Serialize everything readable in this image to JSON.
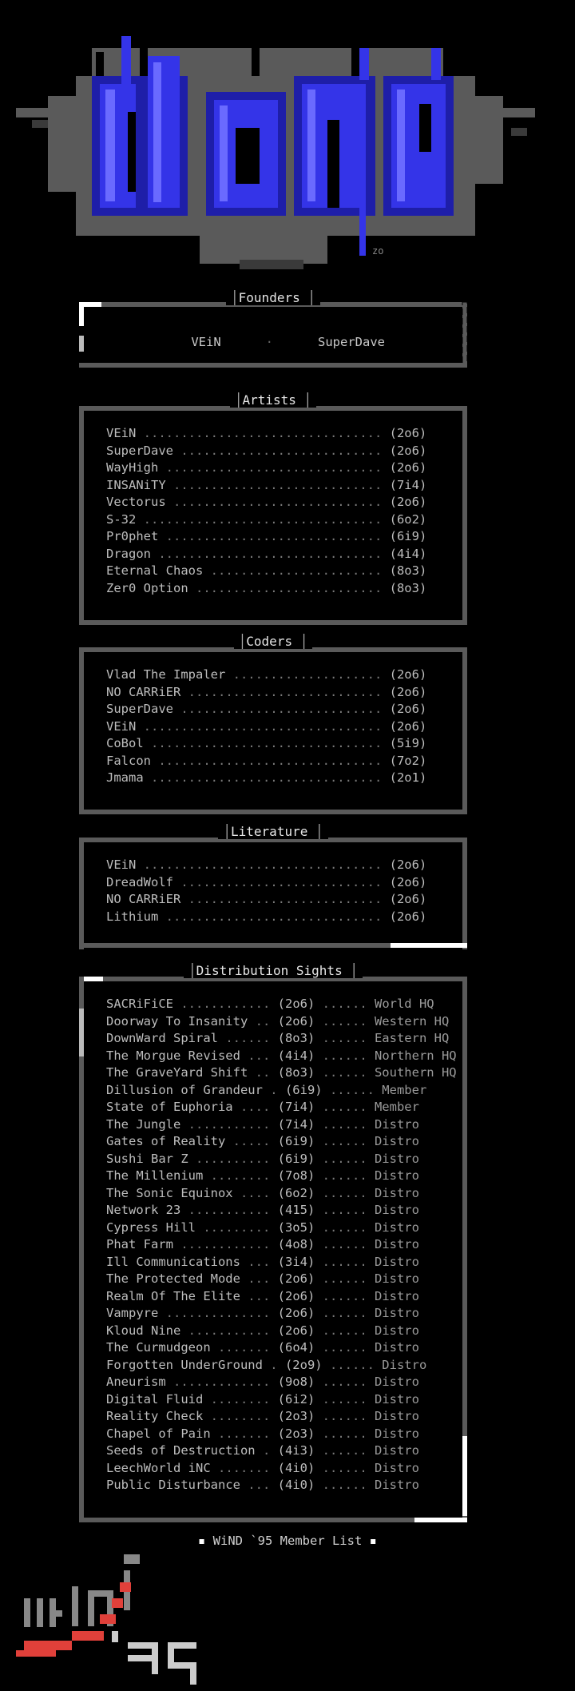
{
  "logo": {
    "artist_tag": "zo"
  },
  "founders": {
    "title": "Founders",
    "names": [
      "VEiN",
      "SuperDave"
    ],
    "separator": "·"
  },
  "artists": {
    "title": "Artists",
    "members": [
      {
        "name": "VEiN",
        "area": "(2o6)"
      },
      {
        "name": "SuperDave",
        "area": "(2o6)"
      },
      {
        "name": "WayHigh",
        "area": "(2o6)"
      },
      {
        "name": "INSANiTY",
        "area": "(7i4)"
      },
      {
        "name": "Vectorus",
        "area": "(2o6)"
      },
      {
        "name": "S-32",
        "area": "(6o2)"
      },
      {
        "name": "Pr0phet",
        "area": "(6i9)"
      },
      {
        "name": "Dragon",
        "area": "(4i4)"
      },
      {
        "name": "Eternal Chaos",
        "area": "(8o3)"
      },
      {
        "name": "Zer0 Option",
        "area": "(8o3)"
      }
    ]
  },
  "coders": {
    "title": "Coders",
    "members": [
      {
        "name": "Vlad The Impaler",
        "area": "(2o6)"
      },
      {
        "name": "NO CARRiER",
        "area": "(2o6)"
      },
      {
        "name": "SuperDave",
        "area": "(2o6)"
      },
      {
        "name": "VEiN",
        "area": "(2o6)"
      },
      {
        "name": "CoBol",
        "area": "(5i9)"
      },
      {
        "name": "Falcon",
        "area": "(7o2)"
      },
      {
        "name": "Jmama",
        "area": "(2o1)"
      }
    ]
  },
  "literature": {
    "title": "Literature",
    "members": [
      {
        "name": "VEiN",
        "area": "(2o6)"
      },
      {
        "name": "DreadWolf",
        "area": "(2o6)"
      },
      {
        "name": "NO CARRiER",
        "area": "(2o6)"
      },
      {
        "name": "Lithium",
        "area": "(2o6)"
      }
    ]
  },
  "distribution": {
    "title": "Distribution Sights",
    "sites": [
      {
        "name": "SACRiFiCE",
        "area": "(2o6)",
        "role": "World HQ"
      },
      {
        "name": "Doorway To Insanity",
        "area": "(2o6)",
        "role": "Western HQ"
      },
      {
        "name": "DownWard Spiral",
        "area": "(8o3)",
        "role": "Eastern HQ"
      },
      {
        "name": "The Morgue Revised",
        "area": "(4i4)",
        "role": "Northern HQ"
      },
      {
        "name": "The GraveYard Shift",
        "area": "(8o3)",
        "role": "Southern HQ"
      },
      {
        "name": "Dillusion of Grandeur",
        "area": "(6i9)",
        "role": "Member"
      },
      {
        "name": "State of Euphoria",
        "area": "(7i4)",
        "role": "Member"
      },
      {
        "name": "The Jungle",
        "area": "(7i4)",
        "role": "Distro"
      },
      {
        "name": "Gates of Reality",
        "area": "(6i9)",
        "role": "Distro"
      },
      {
        "name": "Sushi Bar Z",
        "area": "(6i9)",
        "role": "Distro"
      },
      {
        "name": "The Millenium",
        "area": "(7o8)",
        "role": "Distro"
      },
      {
        "name": "The Sonic Equinox",
        "area": "(6o2)",
        "role": "Distro"
      },
      {
        "name": "Network 23",
        "area": "(415)",
        "role": "Distro"
      },
      {
        "name": "Cypress Hill",
        "area": "(3o5)",
        "role": "Distro"
      },
      {
        "name": "Phat Farm",
        "area": "(4o8)",
        "role": "Distro"
      },
      {
        "name": "Ill Communications",
        "area": "(3i4)",
        "role": "Distro"
      },
      {
        "name": "The Protected Mode",
        "area": "(2o6)",
        "role": "Distro"
      },
      {
        "name": "Realm Of The Elite",
        "area": "(2o6)",
        "role": "Distro"
      },
      {
        "name": "Vampyre",
        "area": "(2o6)",
        "role": "Distro"
      },
      {
        "name": "Kloud Nine",
        "area": "(2o6)",
        "role": "Distro"
      },
      {
        "name": "The Curmudgeon",
        "area": "(6o4)",
        "role": "Distro"
      },
      {
        "name": "Forgotten UnderGround",
        "area": "(2o9)",
        "role": "Distro"
      },
      {
        "name": "Aneurism",
        "area": "(9o8)",
        "role": "Distro"
      },
      {
        "name": "Digital Fluid",
        "area": "(6i2)",
        "role": "Distro"
      },
      {
        "name": "Reality Check",
        "area": "(2o3)",
        "role": "Distro"
      },
      {
        "name": "Chapel of Pain",
        "area": "(2o3)",
        "role": "Distro"
      },
      {
        "name": "Seeds of Destruction",
        "area": "(4i3)",
        "role": "Distro"
      },
      {
        "name": "LeechWorld iNC",
        "area": "(4i0)",
        "role": "Distro"
      },
      {
        "name": "Public Disturbance",
        "area": "(4i0)",
        "role": "Distro"
      }
    ]
  },
  "footer": {
    "text": "WiND `95 Member List"
  },
  "colors": {
    "logo_blue": "#2a2ad8",
    "logo_light_blue": "#5a5aff",
    "frame_gray": "#5a5a5a",
    "accent_red": "#e0403a"
  }
}
